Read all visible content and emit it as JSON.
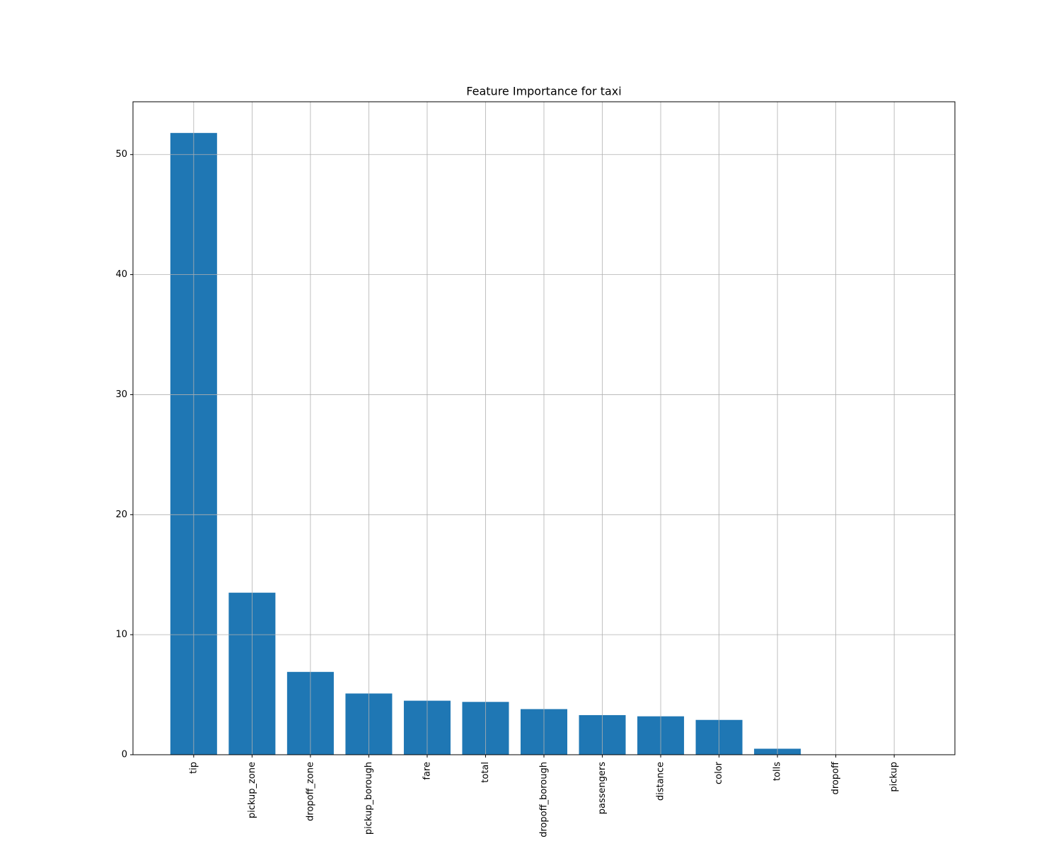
{
  "chart_data": {
    "type": "bar",
    "title": "Feature Importance for taxi",
    "categories": [
      "tip",
      "pickup_zone",
      "dropoff_zone",
      "pickup_borough",
      "fare",
      "total",
      "dropoff_borough",
      "passengers",
      "distance",
      "color",
      "tolls",
      "dropoff",
      "pickup"
    ],
    "values": [
      51.8,
      13.5,
      6.9,
      5.1,
      4.5,
      4.4,
      3.8,
      3.3,
      3.2,
      2.9,
      0.5,
      0,
      0
    ],
    "color": "#1f77b4",
    "ylim": [
      0,
      54.4
    ],
    "yticks": [
      0,
      10,
      20,
      30,
      40,
      50
    ],
    "grid": true
  }
}
